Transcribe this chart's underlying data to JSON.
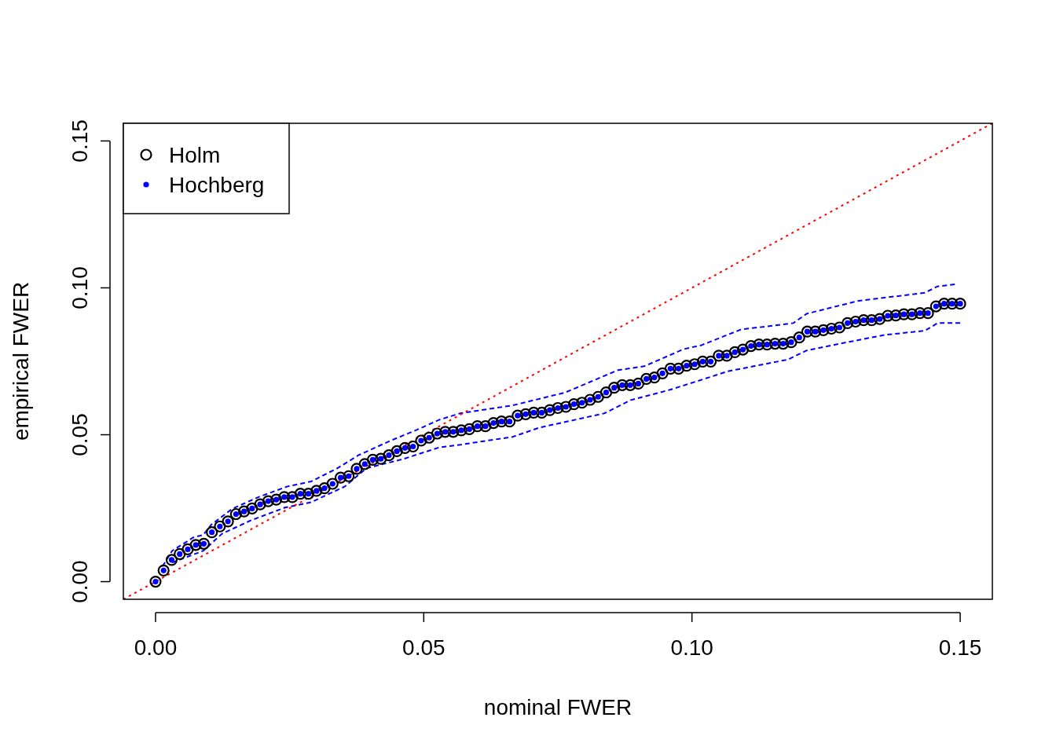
{
  "chart_data": {
    "type": "scatter",
    "xlabel": "nominal FWER",
    "ylabel": "empirical FWER",
    "x": [
      0,
      0.0015,
      0.003,
      0.0045,
      0.006,
      0.0075,
      0.009,
      0.0105,
      0.012,
      0.0135,
      0.015,
      0.0165,
      0.018,
      0.0195,
      0.021,
      0.0225,
      0.024,
      0.0255,
      0.027,
      0.0285,
      0.03,
      0.0315,
      0.033,
      0.0345,
      0.036,
      0.0375,
      0.039,
      0.0405,
      0.042,
      0.0435,
      0.045,
      0.0465,
      0.048,
      0.0495,
      0.051,
      0.0525,
      0.054,
      0.0555,
      0.057,
      0.0585,
      0.06,
      0.0615,
      0.063,
      0.0645,
      0.066,
      0.0675,
      0.069,
      0.0705,
      0.072,
      0.0735,
      0.075,
      0.0765,
      0.078,
      0.0795,
      0.081,
      0.0825,
      0.084,
      0.0855,
      0.087,
      0.0885,
      0.09,
      0.0915,
      0.093,
      0.0945,
      0.096,
      0.0975,
      0.099,
      0.1005,
      0.102,
      0.1035,
      0.105,
      0.1065,
      0.108,
      0.1095,
      0.111,
      0.1125,
      0.114,
      0.1155,
      0.117,
      0.1185,
      0.12,
      0.1215,
      0.123,
      0.1245,
      0.126,
      0.1275,
      0.129,
      0.1305,
      0.132,
      0.1335,
      0.135,
      0.1365,
      0.138,
      0.1395,
      0.141,
      0.1425,
      0.144,
      0.1455,
      0.147,
      0.1485,
      0.15
    ],
    "series": [
      {
        "name": "Holm",
        "color": "#000000",
        "marker": "circle",
        "values": [
          0,
          0.0038,
          0.0074,
          0.0094,
          0.011,
          0.0125,
          0.0129,
          0.0168,
          0.0188,
          0.0205,
          0.023,
          0.0239,
          0.0249,
          0.0263,
          0.0274,
          0.0279,
          0.0288,
          0.0288,
          0.0299,
          0.0299,
          0.0309,
          0.0318,
          0.0333,
          0.0354,
          0.0359,
          0.0384,
          0.04,
          0.0415,
          0.0418,
          0.043,
          0.0444,
          0.0455,
          0.046,
          0.048,
          0.049,
          0.0504,
          0.051,
          0.051,
          0.0515,
          0.0519,
          0.0529,
          0.0529,
          0.054,
          0.0545,
          0.0545,
          0.0565,
          0.057,
          0.0575,
          0.0575,
          0.0584,
          0.0591,
          0.0595,
          0.0604,
          0.0609,
          0.0619,
          0.0629,
          0.0644,
          0.066,
          0.0669,
          0.0669,
          0.0674,
          0.069,
          0.0695,
          0.0709,
          0.0725,
          0.0725,
          0.0735,
          0.074,
          0.0749,
          0.0749,
          0.0769,
          0.0769,
          0.0781,
          0.079,
          0.0802,
          0.0807,
          0.0807,
          0.081,
          0.081,
          0.0815,
          0.0831,
          0.0851,
          0.0851,
          0.0856,
          0.0861,
          0.0865,
          0.088,
          0.0885,
          0.089,
          0.089,
          0.0894,
          0.0905,
          0.0906,
          0.091,
          0.091,
          0.0914,
          0.0914,
          0.0937,
          0.0946,
          0.0946,
          0.0946
        ]
      },
      {
        "name": "Hochberg",
        "color": "#0000ff",
        "marker": "circle",
        "values": [
          0,
          0.0038,
          0.0074,
          0.0094,
          0.011,
          0.0125,
          0.0129,
          0.0168,
          0.0188,
          0.0205,
          0.023,
          0.0239,
          0.0249,
          0.0263,
          0.0274,
          0.0279,
          0.0288,
          0.0288,
          0.0299,
          0.0299,
          0.0309,
          0.0318,
          0.0333,
          0.0354,
          0.0359,
          0.0384,
          0.04,
          0.0415,
          0.0418,
          0.043,
          0.0444,
          0.0455,
          0.046,
          0.048,
          0.049,
          0.0504,
          0.051,
          0.051,
          0.0515,
          0.0519,
          0.0529,
          0.0529,
          0.054,
          0.0545,
          0.0545,
          0.0565,
          0.057,
          0.0575,
          0.0575,
          0.0584,
          0.0591,
          0.0595,
          0.0604,
          0.0609,
          0.0619,
          0.0629,
          0.0644,
          0.066,
          0.0669,
          0.0669,
          0.0674,
          0.069,
          0.0695,
          0.0709,
          0.0725,
          0.0725,
          0.0735,
          0.074,
          0.0749,
          0.0749,
          0.0769,
          0.0769,
          0.0781,
          0.079,
          0.0802,
          0.0807,
          0.0807,
          0.081,
          0.081,
          0.0815,
          0.0831,
          0.0851,
          0.0851,
          0.0856,
          0.0861,
          0.0865,
          0.088,
          0.0885,
          0.089,
          0.089,
          0.0894,
          0.0905,
          0.0906,
          0.091,
          0.091,
          0.0914,
          0.0914,
          0.0937,
          0.0946,
          0.0946,
          0.0946
        ]
      },
      {
        "type": "line",
        "color": "#0000ff",
        "line_style": "dashed",
        "x": [
          0.0013,
          0.0031,
          0.007,
          0.0089,
          0.0104,
          0.0143,
          0.0192,
          0.0246,
          0.029,
          0.0339,
          0.0378,
          0.0437,
          0.0485,
          0.0529,
          0.0568,
          0.0666,
          0.0764,
          0.0862,
          0.0911,
          0.0984,
          0.1018,
          0.1091,
          0.1189,
          0.1214,
          0.1311,
          0.1434,
          0.1458,
          0.149
        ],
        "values": [
          0.0052,
          0.0105,
          0.015,
          0.0159,
          0.0194,
          0.0248,
          0.0288,
          0.0324,
          0.0341,
          0.0386,
          0.043,
          0.0479,
          0.0515,
          0.0551,
          0.0573,
          0.06,
          0.0644,
          0.072,
          0.0733,
          0.0791,
          0.0805,
          0.0858,
          0.088,
          0.0912,
          0.0956,
          0.0983,
          0.1005,
          0.1012
        ]
      },
      {
        "type": "line",
        "color": "#0000ff",
        "line_style": "dashed",
        "x": [
          0.0031,
          0.0089,
          0.0124,
          0.0177,
          0.0241,
          0.029,
          0.0353,
          0.0393,
          0.0461,
          0.0529,
          0.0568,
          0.0666,
          0.0715,
          0.0837,
          0.0886,
          0.0959,
          0.1028,
          0.1067,
          0.1179,
          0.1214,
          0.1287,
          0.136,
          0.1434,
          0.1458,
          0.15
        ],
        "values": [
          0.0065,
          0.0105,
          0.0163,
          0.0208,
          0.0252,
          0.027,
          0.0324,
          0.0386,
          0.0417,
          0.0457,
          0.0466,
          0.0493,
          0.0524,
          0.0573,
          0.0618,
          0.0653,
          0.0693,
          0.0716,
          0.0756,
          0.0787,
          0.0814,
          0.084,
          0.0854,
          0.088,
          0.088
        ]
      },
      {
        "type": "line",
        "color": "#ff0000",
        "line_style": "dotted",
        "x": [
          -0.006,
          0.156
        ],
        "values": [
          -0.006,
          0.156
        ]
      }
    ],
    "xlim": [
      -0.006,
      0.156
    ],
    "ylim": [
      -0.006,
      0.156
    ],
    "xticks": [
      {
        "value": 0,
        "label": "0.00"
      },
      {
        "value": 0.05,
        "label": "0.05"
      },
      {
        "value": 0.1,
        "label": "0.10"
      },
      {
        "value": 0.15,
        "label": "0.15"
      }
    ],
    "yticks": [
      {
        "value": 0,
        "label": "0.00"
      },
      {
        "value": 0.05,
        "label": "0.05"
      },
      {
        "value": 0.1,
        "label": "0.10"
      },
      {
        "value": 0.15,
        "label": "0.15"
      }
    ],
    "grid": false,
    "legend": "top left"
  }
}
